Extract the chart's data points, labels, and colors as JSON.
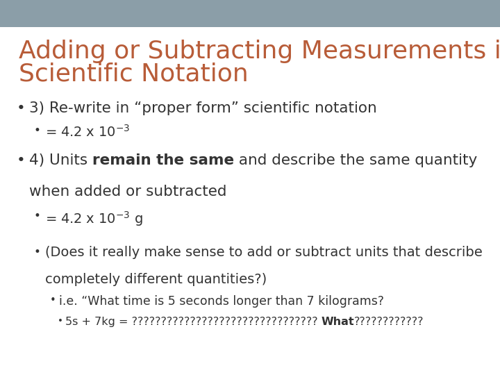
{
  "background_color": "#ffffff",
  "header_bar_color": "#8b9ea8",
  "title_color": "#b85c38",
  "body_color": "#333333",
  "title_fontsize": 26,
  "body_fontsize": 15.5,
  "sub_fontsize": 14,
  "subsub_fontsize": 12.5,
  "subsubsub_fontsize": 11.5,
  "title_line1": "Adding or Subtracting Measurements in",
  "title_line2": "Scientific Notation",
  "b1_text": "3) Re-write in “proper form” scientific notation",
  "b1s1_base": "= 4.2 x 10",
  "b1s1_exp": "-3",
  "b2_seg1": "4) Units ",
  "b2_seg2": "remain the same",
  "b2_seg3": " and describe the same quantity",
  "b2_line2": "when added or subtracted",
  "b2s1_base": "= 4.2 x 10",
  "b2s1_exp": "-3",
  "b2s1_suffix": " g",
  "b3_line1": "(Does it really make sense to add or subtract units that describe",
  "b3_line2": "completely different quantities?)",
  "b3s1_text": "i.e. “What time is 5 seconds longer than 7 kilograms?",
  "b3s1s1_pre": "5s + 7kg = ???????????????????????????????? ",
  "b3s1s1_bold": "What",
  "b3s1s1_post": "????????????"
}
